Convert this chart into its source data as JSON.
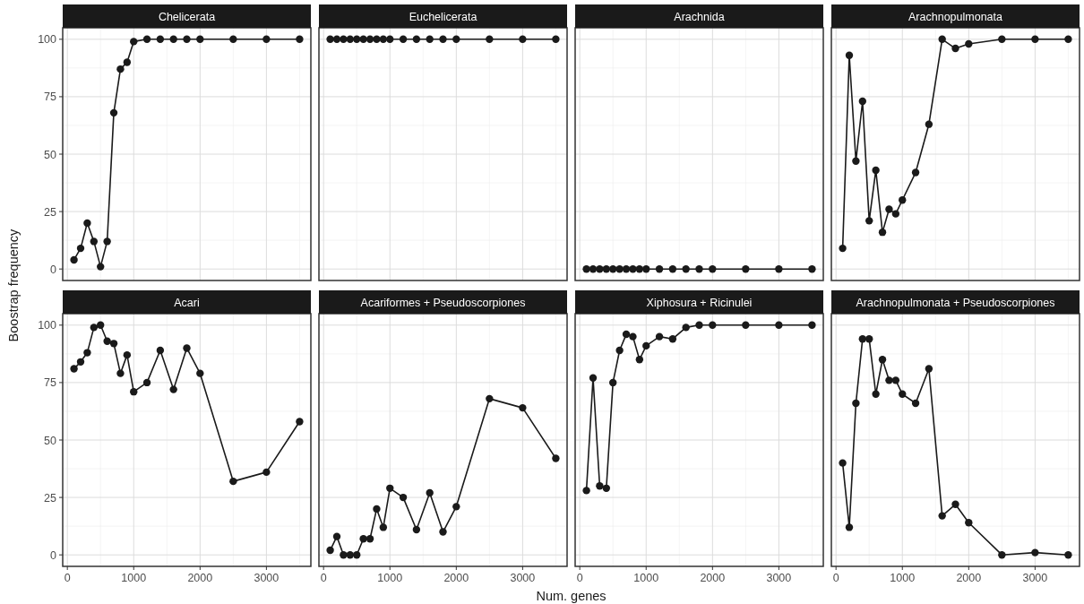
{
  "chart_data": [
    {
      "type": "line",
      "title": "Chelicerata",
      "ylabel": "Boostrap frequency",
      "x": [
        100,
        200,
        300,
        400,
        500,
        600,
        700,
        800,
        900,
        1000,
        1200,
        1400,
        1600,
        1800,
        2000,
        2500,
        3000,
        3500
      ],
      "series": [
        {
          "color": "#1a1a1a",
          "values": [
            4,
            9,
            20,
            12,
            1,
            12,
            68,
            87,
            90,
            99,
            100,
            100,
            100,
            100,
            100,
            100,
            100,
            100
          ]
        }
      ],
      "xlim": [
        -70,
        3670
      ],
      "ylim": [
        -5,
        105
      ],
      "xticks": [
        0,
        1000,
        2000,
        3000
      ],
      "yticks": [
        0,
        25,
        50,
        75,
        100
      ],
      "grid": true,
      "marker": "circle",
      "line_style": "solid",
      "tick_labels": "y"
    },
    {
      "type": "line",
      "title": "Euchelicerata",
      "x": [
        100,
        200,
        300,
        400,
        500,
        600,
        700,
        800,
        900,
        1000,
        1200,
        1400,
        1600,
        1800,
        2000,
        2500,
        3000,
        3500
      ],
      "series": [
        {
          "color": "#1a1a1a",
          "values": [
            100,
            100,
            100,
            100,
            100,
            100,
            100,
            100,
            100,
            100,
            100,
            100,
            100,
            100,
            100,
            100,
            100,
            100
          ]
        }
      ],
      "xlim": [
        -70,
        3670
      ],
      "ylim": [
        -5,
        105
      ],
      "xticks": [
        0,
        1000,
        2000,
        3000
      ],
      "yticks": [
        0,
        25,
        50,
        75,
        100
      ],
      "grid": true,
      "marker": "circle",
      "line_style": "solid",
      "tick_labels": false
    },
    {
      "type": "line",
      "title": "Arachnida",
      "x": [
        100,
        200,
        300,
        400,
        500,
        600,
        700,
        800,
        900,
        1000,
        1200,
        1400,
        1600,
        1800,
        2000,
        2500,
        3000,
        3500
      ],
      "series": [
        {
          "color": "#1a1a1a",
          "values": [
            0,
            0,
            0,
            0,
            0,
            0,
            0,
            0,
            0,
            0,
            0,
            0,
            0,
            0,
            0,
            0,
            0,
            0
          ]
        }
      ],
      "xlim": [
        -70,
        3670
      ],
      "ylim": [
        -5,
        105
      ],
      "xticks": [
        0,
        1000,
        2000,
        3000
      ],
      "yticks": [
        0,
        25,
        50,
        75,
        100
      ],
      "grid": true,
      "marker": "circle",
      "line_style": "solid",
      "tick_labels": false
    },
    {
      "type": "line",
      "title": "Arachnopulmonata",
      "x": [
        100,
        200,
        300,
        400,
        500,
        600,
        700,
        800,
        900,
        1000,
        1200,
        1400,
        1600,
        1800,
        2000,
        2500,
        3000,
        3500
      ],
      "series": [
        {
          "color": "#1a1a1a",
          "values": [
            9,
            93,
            47,
            73,
            21,
            43,
            16,
            26,
            24,
            30,
            42,
            63,
            100,
            96,
            98,
            100,
            100,
            100
          ]
        }
      ],
      "xlim": [
        -70,
        3670
      ],
      "ylim": [
        -5,
        105
      ],
      "xticks": [
        0,
        1000,
        2000,
        3000
      ],
      "yticks": [
        0,
        25,
        50,
        75,
        100
      ],
      "grid": true,
      "marker": "circle",
      "line_style": "solid",
      "tick_labels": false
    },
    {
      "type": "line",
      "title": "Acari",
      "x": [
        100,
        200,
        300,
        400,
        500,
        600,
        700,
        800,
        900,
        1000,
        1200,
        1400,
        1600,
        1800,
        2000,
        2500,
        3000,
        3500
      ],
      "series": [
        {
          "color": "#1a1a1a",
          "values": [
            81,
            84,
            88,
            99,
            100,
            93,
            92,
            79,
            87,
            71,
            75,
            89,
            72,
            90,
            79,
            32,
            36,
            58
          ]
        }
      ],
      "xlim": [
        -70,
        3670
      ],
      "ylim": [
        -5,
        105
      ],
      "xticks": [
        0,
        1000,
        2000,
        3000
      ],
      "yticks": [
        0,
        25,
        50,
        75,
        100
      ],
      "grid": true,
      "marker": "circle",
      "line_style": "solid"
    },
    {
      "type": "line",
      "title": "Acariformes + Pseudoscorpiones",
      "xlabel": "Num. genes",
      "x": [
        100,
        200,
        300,
        400,
        500,
        600,
        700,
        800,
        900,
        1000,
        1200,
        1400,
        1600,
        1800,
        2000,
        2500,
        3000,
        3500
      ],
      "series": [
        {
          "color": "#1a1a1a",
          "values": [
            2,
            8,
            0,
            0,
            0,
            7,
            7,
            20,
            12,
            29,
            25,
            11,
            27,
            10,
            21,
            68,
            64,
            42
          ]
        }
      ],
      "xlim": [
        -70,
        3670
      ],
      "ylim": [
        -5,
        105
      ],
      "xticks": [
        0,
        1000,
        2000,
        3000
      ],
      "yticks": [
        0,
        25,
        50,
        75,
        100
      ],
      "grid": true,
      "marker": "circle",
      "line_style": "solid",
      "tick_labels": "x"
    },
    {
      "type": "line",
      "title": "Xiphosura + Ricinulei",
      "x": [
        100,
        200,
        300,
        400,
        500,
        600,
        700,
        800,
        900,
        1000,
        1200,
        1400,
        1600,
        1800,
        2000,
        2500,
        3000,
        3500
      ],
      "series": [
        {
          "color": "#1a1a1a",
          "values": [
            28,
            77,
            30,
            29,
            75,
            89,
            96,
            95,
            85,
            91,
            95,
            94,
            99,
            100,
            100,
            100,
            100,
            100
          ]
        }
      ],
      "xlim": [
        -70,
        3670
      ],
      "ylim": [
        -5,
        105
      ],
      "xticks": [
        0,
        1000,
        2000,
        3000
      ],
      "yticks": [
        0,
        25,
        50,
        75,
        100
      ],
      "grid": true,
      "marker": "circle",
      "line_style": "solid",
      "tick_labels": "x"
    },
    {
      "type": "line",
      "title": "Arachnopulmonata + Pseudoscorpiones",
      "x": [
        100,
        200,
        300,
        400,
        500,
        600,
        700,
        800,
        900,
        1000,
        1200,
        1400,
        1600,
        1800,
        2000,
        2500,
        3000,
        3500
      ],
      "series": [
        {
          "color": "#1a1a1a",
          "values": [
            40,
            12,
            66,
            94,
            94,
            70,
            85,
            76,
            76,
            70,
            66,
            81,
            17,
            22,
            14,
            0,
            1,
            0
          ]
        }
      ],
      "xlim": [
        -70,
        3670
      ],
      "ylim": [
        -5,
        105
      ],
      "xticks": [
        0,
        1000,
        2000,
        3000
      ],
      "yticks": [
        0,
        25,
        50,
        75,
        100
      ],
      "grid": true,
      "marker": "circle",
      "line_style": "solid",
      "tick_labels": "x"
    }
  ]
}
